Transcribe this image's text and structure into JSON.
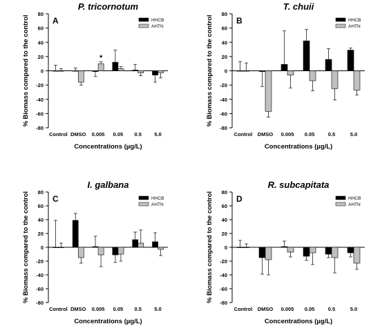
{
  "figure": {
    "shared_ylabel": "% Biomass compared to the control",
    "shared_xlabel": "Concentrations (µg/L)"
  },
  "chart_data": [
    {
      "type": "bar",
      "panel": "A",
      "title": "P. tricornotum",
      "xlabel": "Concentrations (µg/L)",
      "ylabel": "% Biomass compared to the control",
      "ylim": [
        -80,
        80
      ],
      "yticks": [
        -80,
        -60,
        -40,
        -20,
        0,
        20,
        40,
        60,
        80
      ],
      "categories": [
        "Control",
        "DMSO",
        "0.005",
        "0.05",
        "0.5",
        "5.0"
      ],
      "series": [
        {
          "name": "HHCB",
          "color": "#000000",
          "values": [
            0,
            0,
            -1,
            12,
            1,
            -6
          ],
          "errors": [
            8,
            4,
            7,
            17,
            8,
            10
          ]
        },
        {
          "name": "AHTN",
          "color": "#c0c0c0",
          "values": [
            0,
            -16,
            10,
            3,
            -3,
            -3
          ],
          "errors": [
            3,
            4,
            3,
            3,
            4,
            7
          ]
        }
      ],
      "annotations": [
        {
          "text": "*",
          "category": "0.005",
          "series": "AHTN"
        }
      ],
      "legend_position": "top-right"
    },
    {
      "type": "bar",
      "panel": "B",
      "title": "T. chuii",
      "xlabel": "Concentrations (µg/L)",
      "ylabel": "% Biomass compared to the control",
      "ylim": [
        -80,
        80
      ],
      "yticks": [
        -80,
        -60,
        -40,
        -20,
        0,
        20,
        40,
        60,
        80
      ],
      "categories": [
        "Control",
        "DMSO",
        "0.005",
        "0.05",
        "0.5",
        "5.0"
      ],
      "series": [
        {
          "name": "HHCB",
          "color": "#000000",
          "values": [
            0,
            -1,
            9,
            42,
            16,
            29
          ],
          "errors": [
            13,
            21,
            47,
            16,
            15,
            3
          ]
        },
        {
          "name": "AHTN",
          "color": "#c0c0c0",
          "values": [
            0,
            -57,
            -6,
            -14,
            -25,
            -27
          ],
          "errors": [
            11,
            8,
            18,
            14,
            16,
            7
          ]
        }
      ],
      "legend_position": "top-right"
    },
    {
      "type": "bar",
      "panel": "C",
      "title": "I. galbana",
      "xlabel": "Concentrations (µg/L)",
      "ylabel": "% Biomass compared to the control",
      "ylim": [
        -80,
        80
      ],
      "yticks": [
        -80,
        -60,
        -40,
        -20,
        0,
        20,
        40,
        60,
        80
      ],
      "categories": [
        "Control",
        "DMSO",
        "0.005",
        "0.05",
        "0.5",
        "5.0"
      ],
      "series": [
        {
          "name": "HHCB",
          "color": "#000000",
          "values": [
            0,
            39,
            1,
            -11,
            11,
            8
          ],
          "errors": [
            39,
            10,
            15,
            11,
            11,
            13
          ]
        },
        {
          "name": "AHTN",
          "color": "#c0c0c0",
          "values": [
            0,
            -15,
            -11,
            -10,
            6,
            -3
          ],
          "errors": [
            6,
            8,
            17,
            10,
            19,
            9
          ]
        }
      ],
      "legend_position": "top-right"
    },
    {
      "type": "bar",
      "panel": "D",
      "title": "R. subcapitata",
      "xlabel": "Concentrations (µg/L)",
      "ylabel": "% Biomass compared to the control",
      "ylim": [
        -80,
        80
      ],
      "yticks": [
        -80,
        -60,
        -40,
        -20,
        0,
        20,
        40,
        60,
        80
      ],
      "categories": [
        "Control",
        "DMSO",
        "0.005",
        "0.05",
        "0.5",
        "5.0"
      ],
      "series": [
        {
          "name": "HHCB",
          "color": "#000000",
          "values": [
            0,
            -15,
            1,
            -13,
            -10,
            -8
          ],
          "errors": [
            10,
            24,
            8,
            6,
            5,
            6
          ]
        },
        {
          "name": "AHTN",
          "color": "#c0c0c0",
          "values": [
            0,
            -18,
            -7,
            -8,
            -15,
            -23
          ],
          "errors": [
            5,
            22,
            7,
            17,
            22,
            9
          ]
        }
      ],
      "legend_position": "top-right"
    }
  ]
}
